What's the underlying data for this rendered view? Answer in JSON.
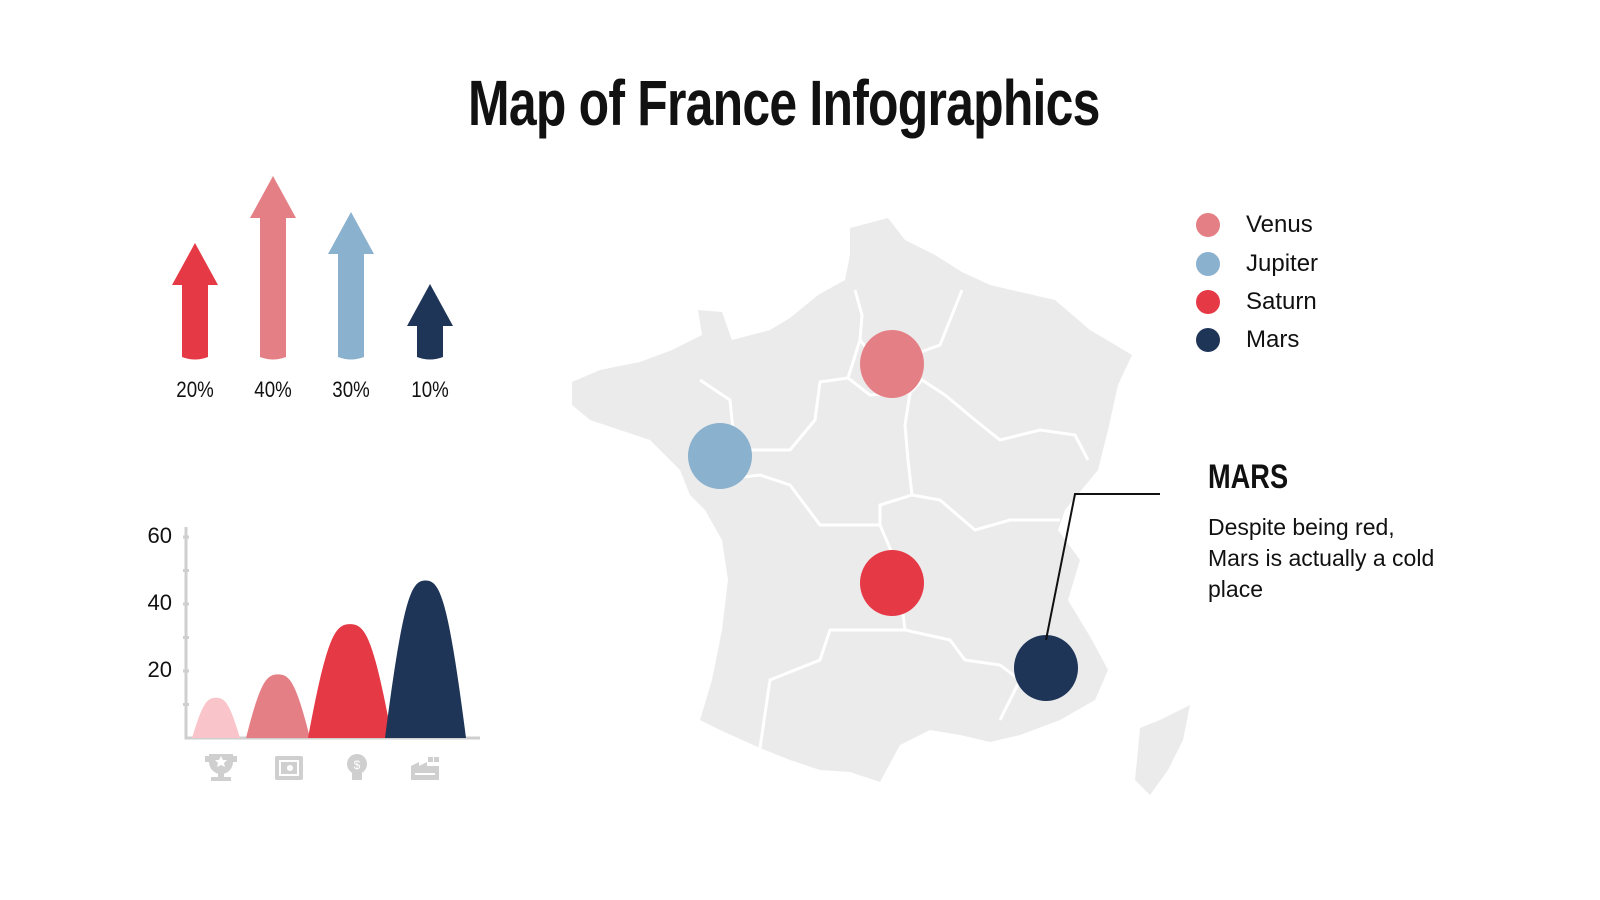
{
  "title": "Map of France Infographics",
  "arrows": [
    {
      "label": "20%",
      "value": 20,
      "color": "#e63946"
    },
    {
      "label": "40%",
      "value": 40,
      "color": "#e57f86"
    },
    {
      "label": "30%",
      "value": 30,
      "color": "#8ab1cd"
    },
    {
      "label": "10%",
      "value": 10,
      "color": "#1f3557"
    }
  ],
  "chart_data": {
    "type": "bar",
    "categories": [
      "trophy-icon",
      "safe-icon",
      "lightbulb-dollar-icon",
      "factory-icon"
    ],
    "values": [
      12,
      19,
      34,
      47
    ],
    "colors": [
      "#f9c5cb",
      "#e57f86",
      "#e63946",
      "#1f3557"
    ],
    "ylim": [
      0,
      60
    ],
    "yticks": [
      "20",
      "40",
      "60"
    ],
    "grid": false,
    "bar_shape": "peak"
  },
  "legend": [
    {
      "label": "Venus",
      "color": "#e57f86"
    },
    {
      "label": "Jupiter",
      "color": "#8ab1cd"
    },
    {
      "label": "Saturn",
      "color": "#e63946"
    },
    {
      "label": "Mars",
      "color": "#1f3557"
    }
  ],
  "callout": {
    "title": "MARS",
    "text": "Despite being red, Mars is actually a cold place"
  },
  "map": {
    "fill": "#ebebeb",
    "border": "#ffffff"
  }
}
